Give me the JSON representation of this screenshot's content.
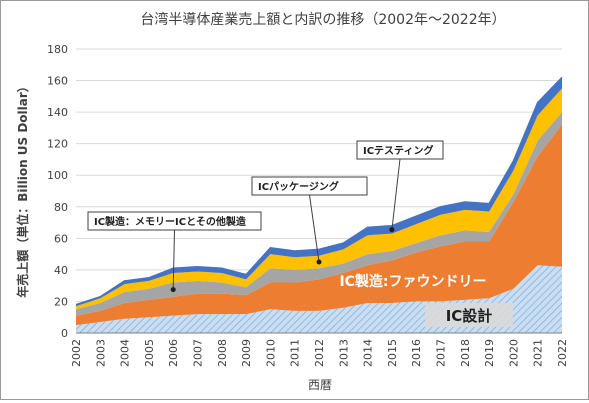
{
  "chart_data": {
    "type": "area",
    "stacked": true,
    "title": "台湾半導体産業売上額と内訳の推移（2002年～2022年）",
    "xlabel": "西暦",
    "ylabel": "年売上額（単位：Billion US Dollar）",
    "ylim": [
      0,
      180
    ],
    "yticks": [
      0,
      20,
      40,
      60,
      80,
      100,
      120,
      140,
      160,
      180
    ],
    "grid": true,
    "categories": [
      "2002",
      "2003",
      "2004",
      "2005",
      "2006",
      "2007",
      "2008",
      "2009",
      "2010",
      "2011",
      "2012",
      "2013",
      "2014",
      "2015",
      "2016",
      "2017",
      "2018",
      "2019",
      "2020",
      "2021",
      "2022"
    ],
    "series": [
      {
        "name": "IC設計",
        "color": "#9dc3e6",
        "values": [
          5,
          7,
          9,
          10,
          11,
          12,
          12,
          12,
          15,
          14,
          14,
          16,
          19,
          19,
          20,
          20,
          21,
          22,
          28,
          43,
          42
        ]
      },
      {
        "name": "IC製造:ファウンドリー",
        "color": "#ed7d31",
        "values": [
          6,
          7,
          10,
          11,
          12,
          13,
          13,
          12,
          17,
          18,
          20,
          22,
          24,
          27,
          31,
          35,
          37,
          36,
          55,
          69,
          90
        ]
      },
      {
        "name": "IC製造：メモリーICとその他製造",
        "color": "#a5a5a5",
        "values": [
          4,
          5,
          7,
          7,
          9,
          8,
          7,
          5,
          9,
          8,
          7,
          6,
          7,
          6,
          6,
          7,
          7,
          6,
          5,
          10,
          8
        ]
      },
      {
        "name": "ICパッケージング",
        "color": "#ffc000",
        "values": [
          2,
          3,
          5,
          5,
          6,
          6,
          6,
          5,
          9,
          8,
          8,
          9,
          12,
          11,
          12,
          13,
          13,
          13,
          15,
          16,
          15
        ]
      },
      {
        "name": "ICテスティング",
        "color": "#4472c4",
        "values": [
          1,
          1,
          2,
          2,
          3,
          3,
          3,
          3,
          4,
          4,
          4,
          4,
          5,
          5,
          5,
          5,
          5,
          5,
          6,
          8,
          7
        ]
      }
    ],
    "annotations": [
      {
        "series": 2,
        "text": "IC製造：メモリーICとその他製造",
        "style": "callout"
      },
      {
        "series": 3,
        "text": "ICパッケージング",
        "style": "callout"
      },
      {
        "series": 4,
        "text": "ICテスティング",
        "style": "callout"
      },
      {
        "series": 1,
        "text": "IC製造:ファウンドリー",
        "style": "inline-white"
      },
      {
        "series": 0,
        "text": "IC設計",
        "style": "inline-box"
      }
    ]
  }
}
